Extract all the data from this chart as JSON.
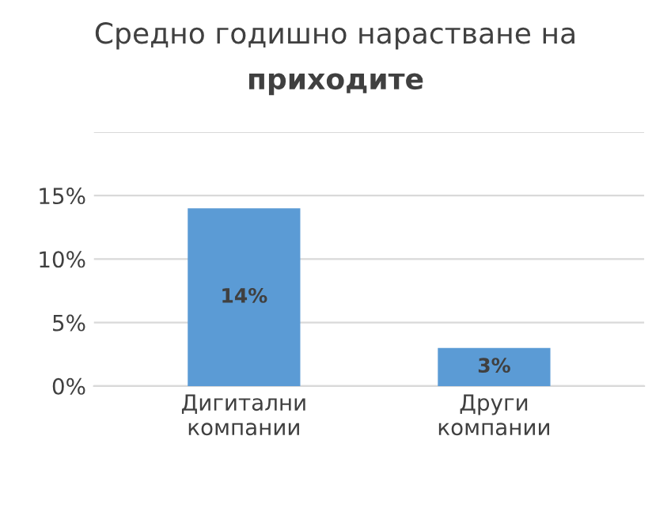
{
  "chart_data": {
    "type": "bar",
    "title": "Средно годишно нарастване на приходите",
    "categories": [
      "Дигитални компании",
      "Други компании"
    ],
    "values": [
      14,
      3
    ],
    "value_labels": [
      "14%",
      "3%"
    ],
    "color": "#5b9bd5",
    "ylim": [
      0,
      20
    ],
    "yticks": [
      {
        "value": 0,
        "label": "0%"
      },
      {
        "value": 5,
        "label": "5%"
      },
      {
        "value": 10,
        "label": "10%"
      },
      {
        "value": 15,
        "label": "15%"
      },
      {
        "value": 20,
        "label": null
      }
    ],
    "grid": "y"
  }
}
